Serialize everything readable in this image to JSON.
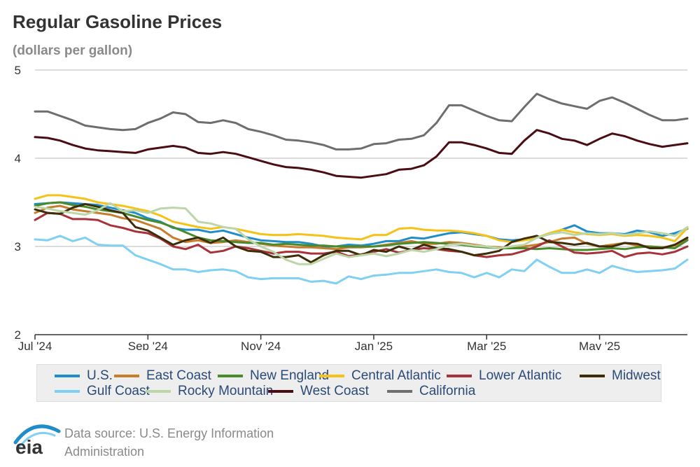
{
  "header": {
    "title": "Regular Gasoline Prices",
    "subtitle": "(dollars per gallon)"
  },
  "footer": {
    "source": "Data source: U.S. Energy Information Administration",
    "logo_text": "eia"
  },
  "chart_data": {
    "type": "line",
    "title": "Regular Gasoline Prices",
    "ylabel": "(dollars per gallon)",
    "xlabel": "",
    "ylim": [
      2,
      5
    ],
    "yticks": [
      2,
      3,
      4,
      5
    ],
    "xticks": [
      {
        "label": "Jul '24",
        "week": 0
      },
      {
        "label": "Sep '24",
        "week": 9
      },
      {
        "label": "Nov '24",
        "week": 18
      },
      {
        "label": "Jan '25",
        "week": 27
      },
      {
        "label": "Mar '25",
        "week": 36
      },
      {
        "label": "May '25",
        "week": 45
      }
    ],
    "x_weeks": 52,
    "grid": "horizontal",
    "legend_position": "bottom",
    "series": [
      {
        "name": "U.S.",
        "color": "#1f8dc9",
        "values": [
          3.48,
          3.49,
          3.5,
          3.49,
          3.48,
          3.47,
          3.44,
          3.41,
          3.38,
          3.32,
          3.28,
          3.21,
          3.19,
          3.19,
          3.16,
          3.18,
          3.14,
          3.1,
          3.07,
          3.06,
          3.05,
          3.05,
          3.03,
          3.0,
          3.0,
          3.02,
          3.01,
          3.03,
          3.06,
          3.06,
          3.1,
          3.09,
          3.12,
          3.15,
          3.16,
          3.14,
          3.12,
          3.08,
          3.07,
          3.08,
          3.1,
          3.14,
          3.19,
          3.24,
          3.17,
          3.15,
          3.15,
          3.14,
          3.18,
          3.16,
          3.12,
          3.15,
          3.2
        ]
      },
      {
        "name": "East Coast",
        "color": "#c87c2e",
        "values": [
          3.38,
          3.44,
          3.46,
          3.42,
          3.4,
          3.38,
          3.36,
          3.32,
          3.3,
          3.25,
          3.2,
          3.1,
          3.05,
          3.07,
          3.04,
          3.05,
          3.07,
          3.05,
          3.03,
          3.01,
          3.0,
          2.99,
          2.99,
          2.98,
          2.97,
          2.99,
          2.99,
          3.0,
          3.02,
          3.04,
          3.06,
          3.03,
          3.03,
          3.05,
          3.04,
          3.02,
          3.0,
          2.99,
          2.98,
          3.0,
          3.02,
          3.05,
          3.09,
          3.1,
          3.03,
          3.0,
          3.02,
          3.04,
          3.01,
          3.0,
          2.99,
          3.01,
          3.08
        ]
      },
      {
        "name": "New England",
        "color": "#4a8a2a",
        "values": [
          3.46,
          3.49,
          3.5,
          3.47,
          3.45,
          3.42,
          3.4,
          3.38,
          3.34,
          3.3,
          3.27,
          3.22,
          3.16,
          3.1,
          3.07,
          3.06,
          3.05,
          3.04,
          3.04,
          3.02,
          3.03,
          3.02,
          3.01,
          3.01,
          3.0,
          3.0,
          3.0,
          3.0,
          3.01,
          3.03,
          3.04,
          3.05,
          3.04,
          3.03,
          3.02,
          3.0,
          2.99,
          2.98,
          2.98,
          2.98,
          2.97,
          2.98,
          2.97,
          2.96,
          2.96,
          2.97,
          2.98,
          2.97,
          2.99,
          3.0,
          2.99,
          2.98,
          3.07
        ]
      },
      {
        "name": "Central Atlantic",
        "color": "#f5c218",
        "values": [
          3.54,
          3.58,
          3.58,
          3.56,
          3.54,
          3.5,
          3.48,
          3.46,
          3.43,
          3.4,
          3.35,
          3.28,
          3.25,
          3.22,
          3.2,
          3.22,
          3.2,
          3.17,
          3.14,
          3.13,
          3.13,
          3.14,
          3.13,
          3.12,
          3.1,
          3.09,
          3.08,
          3.13,
          3.13,
          3.2,
          3.21,
          3.19,
          3.18,
          3.18,
          3.17,
          3.15,
          3.12,
          3.07,
          3.05,
          3.07,
          3.1,
          3.15,
          3.19,
          3.16,
          3.14,
          3.13,
          3.14,
          3.12,
          3.13,
          3.12,
          3.1,
          3.06,
          3.21
        ]
      },
      {
        "name": "Lower Atlantic",
        "color": "#a8323a",
        "values": [
          3.3,
          3.38,
          3.37,
          3.31,
          3.31,
          3.3,
          3.24,
          3.21,
          3.17,
          3.15,
          3.09,
          3.0,
          2.97,
          3.02,
          2.93,
          2.95,
          3.0,
          2.98,
          2.95,
          2.92,
          2.94,
          2.94,
          2.92,
          2.92,
          2.94,
          2.89,
          2.91,
          2.94,
          2.97,
          2.93,
          2.96,
          2.98,
          2.97,
          2.95,
          2.94,
          2.9,
          2.88,
          2.9,
          2.91,
          2.95,
          3.0,
          3.07,
          3.0,
          2.93,
          2.92,
          2.93,
          2.95,
          2.88,
          2.92,
          2.93,
          2.91,
          2.94,
          3.0
        ]
      },
      {
        "name": "Midwest",
        "color": "#3d2d08",
        "values": [
          3.42,
          3.38,
          3.37,
          3.44,
          3.48,
          3.45,
          3.41,
          3.38,
          3.22,
          3.18,
          3.1,
          3.02,
          3.07,
          3.1,
          3.04,
          3.1,
          3.0,
          2.95,
          2.94,
          2.88,
          2.88,
          2.9,
          2.82,
          2.9,
          2.95,
          2.95,
          2.9,
          2.96,
          2.94,
          3.0,
          2.96,
          3.02,
          2.98,
          2.97,
          2.94,
          2.9,
          2.92,
          2.95,
          3.05,
          3.09,
          3.12,
          3.05,
          3.04,
          3.02,
          3.04,
          3.0,
          3.0,
          3.04,
          3.03,
          2.98,
          2.98,
          3.02,
          3.1
        ]
      },
      {
        "name": "Gulf Coast",
        "color": "#7fd0f2",
        "values": [
          3.08,
          3.07,
          3.12,
          3.06,
          3.1,
          3.02,
          3.01,
          3.01,
          2.9,
          2.85,
          2.8,
          2.74,
          2.74,
          2.71,
          2.73,
          2.74,
          2.72,
          2.65,
          2.63,
          2.64,
          2.64,
          2.64,
          2.6,
          2.61,
          2.58,
          2.66,
          2.63,
          2.67,
          2.68,
          2.7,
          2.7,
          2.72,
          2.74,
          2.71,
          2.7,
          2.65,
          2.7,
          2.65,
          2.74,
          2.72,
          2.85,
          2.77,
          2.7,
          2.7,
          2.74,
          2.7,
          2.78,
          2.74,
          2.71,
          2.72,
          2.73,
          2.75,
          2.85
        ]
      },
      {
        "name": "Rocky Mountain",
        "color": "#bcd6a8",
        "values": [
          3.45,
          3.43,
          3.4,
          3.38,
          3.36,
          3.41,
          3.49,
          3.4,
          3.41,
          3.38,
          3.43,
          3.44,
          3.43,
          3.28,
          3.26,
          3.22,
          3.2,
          3.08,
          3.0,
          2.94,
          2.85,
          2.8,
          2.8,
          2.86,
          2.92,
          2.88,
          2.9,
          2.92,
          2.89,
          2.92,
          2.96,
          2.94,
          2.97,
          3.02,
          3.03,
          3.01,
          3.0,
          2.98,
          3.0,
          3.02,
          3.1,
          3.14,
          3.16,
          3.13,
          3.15,
          3.14,
          3.15,
          3.13,
          3.15,
          3.17,
          3.15,
          3.12,
          3.22
        ]
      },
      {
        "name": "West Coast",
        "color": "#4a0d13",
        "values": [
          4.24,
          4.23,
          4.2,
          4.15,
          4.11,
          4.09,
          4.08,
          4.07,
          4.06,
          4.1,
          4.12,
          4.14,
          4.12,
          4.06,
          4.05,
          4.07,
          4.05,
          4.01,
          3.97,
          3.93,
          3.9,
          3.89,
          3.87,
          3.84,
          3.8,
          3.79,
          3.78,
          3.8,
          3.82,
          3.87,
          3.88,
          3.92,
          4.02,
          4.18,
          4.18,
          4.15,
          4.11,
          4.06,
          4.05,
          4.2,
          4.32,
          4.28,
          4.22,
          4.2,
          4.15,
          4.22,
          4.28,
          4.25,
          4.2,
          4.16,
          4.13,
          4.15,
          4.17
        ]
      },
      {
        "name": "California",
        "color": "#6e6e6e",
        "values": [
          4.53,
          4.53,
          4.48,
          4.43,
          4.37,
          4.35,
          4.33,
          4.32,
          4.33,
          4.4,
          4.45,
          4.52,
          4.5,
          4.41,
          4.4,
          4.43,
          4.4,
          4.33,
          4.3,
          4.26,
          4.21,
          4.2,
          4.18,
          4.15,
          4.1,
          4.1,
          4.11,
          4.16,
          4.17,
          4.21,
          4.22,
          4.26,
          4.4,
          4.6,
          4.6,
          4.54,
          4.48,
          4.43,
          4.42,
          4.58,
          4.73,
          4.67,
          4.62,
          4.59,
          4.56,
          4.65,
          4.69,
          4.63,
          4.56,
          4.49,
          4.43,
          4.43,
          4.45
        ]
      }
    ]
  }
}
